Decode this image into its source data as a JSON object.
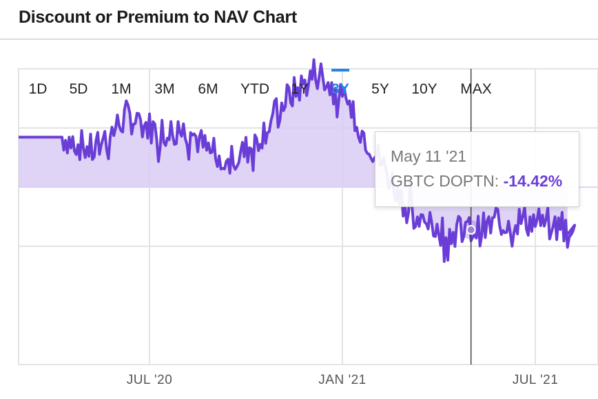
{
  "header": {
    "title": "Discount or Premium to NAV Chart"
  },
  "time_ranges": [
    "1D",
    "5D",
    "1M",
    "3M",
    "6M",
    "YTD",
    "1Y",
    "3Y",
    "5Y",
    "10Y",
    "MAX"
  ],
  "active_range": "3Y",
  "tooltip": {
    "date": "May 11 '21",
    "series_label": "GBTC DOPTN:",
    "value": "-14.42%"
  },
  "colors": {
    "line": "#6a3ed6",
    "fill": "#d9ccf4",
    "grid": "#e3e3e3",
    "accent": "#1e88e5"
  },
  "chart_data": {
    "type": "area",
    "title": "Discount or Premium to NAV Chart",
    "series": [
      {
        "name": "GBTC DOPTN",
        "x": [
          "Apr 20",
          "May 20",
          "Jun 20",
          "Jul 20",
          "Aug 20",
          "Sep 20",
          "Oct 20",
          "Nov 20",
          "Dec 20",
          "Jan 21",
          "Feb 21",
          "Mar 21",
          "Apr 21",
          "May 11 21",
          "Jun 21",
          "Jul 21",
          "Aug 21"
        ],
        "values": [
          17,
          12,
          24,
          19,
          19,
          6,
          15,
          30,
          39,
          25,
          7,
          -12,
          -15,
          -14.42,
          -11,
          -12,
          -16
        ]
      }
    ],
    "x_tick_labels": [
      "JUL '20",
      "JAN '21",
      "JUL '21"
    ],
    "ylim": [
      -60,
      40
    ],
    "grid": true,
    "baseline": 0,
    "highlight": {
      "x": "May 11 21",
      "value": -14.42
    }
  }
}
